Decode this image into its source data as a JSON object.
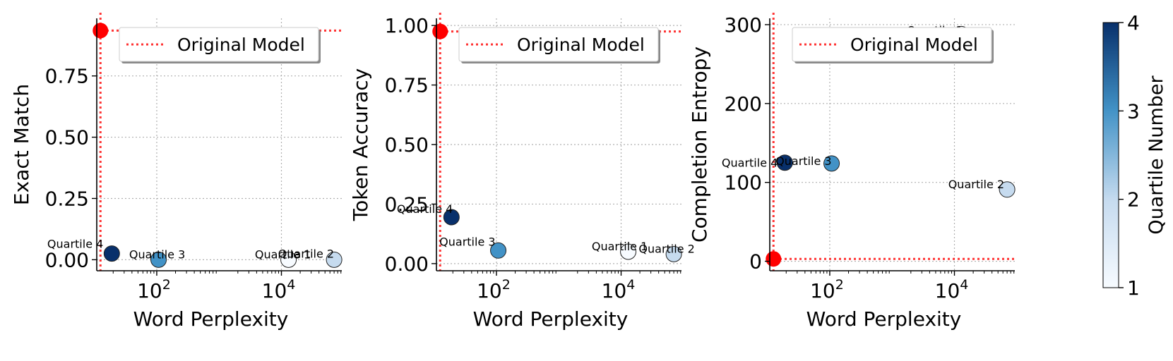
{
  "figure": {
    "colorbar": {
      "label": "Quartile Number",
      "min": 1,
      "max": 4,
      "ticks": [
        "1",
        "2",
        "3",
        "4"
      ],
      "colormap": "Blues",
      "colors": [
        "#f7fbff",
        "#c6dbef",
        "#4292c6",
        "#08306b"
      ]
    },
    "reference_color": "#ff0000"
  },
  "chart_data": [
    {
      "type": "scatter",
      "xlabel": "Word Perplexity",
      "ylabel": "Exact Match",
      "xscale": "log",
      "xlim": [
        10.9,
        93000
      ],
      "ylim": [
        -0.045,
        0.985
      ],
      "xticks": [
        {
          "value": 100,
          "label": "10",
          "exp": "2"
        },
        {
          "value": 10000,
          "label": "10",
          "exp": "4"
        }
      ],
      "yticks": [
        {
          "value": 0.0,
          "label": "0.00"
        },
        {
          "value": 0.25,
          "label": "0.25"
        },
        {
          "value": 0.5,
          "label": "0.50"
        },
        {
          "value": 0.75,
          "label": "0.75"
        }
      ],
      "grid": true,
      "legend": {
        "label": "Original Model",
        "placement": "upper right"
      },
      "reference": {
        "x": 12.5,
        "y": 0.935
      },
      "points": [
        {
          "label": "Quartile 4",
          "x": 19,
          "y": 0.025,
          "quartile": 4
        },
        {
          "label": "Quartile 3",
          "x": 107,
          "y": 0.0,
          "quartile": 3
        },
        {
          "label": "Quartile 1",
          "x": 13000,
          "y": 0.0,
          "quartile": 1
        },
        {
          "label": "Quartile 2",
          "x": 70000,
          "y": 0.0,
          "quartile": 2
        }
      ]
    },
    {
      "type": "scatter",
      "xlabel": "Word Perplexity",
      "ylabel": "Token Accuracy",
      "xscale": "log",
      "xlim": [
        10.9,
        93000
      ],
      "ylim": [
        -0.03,
        1.03
      ],
      "xticks": [
        {
          "value": 100,
          "label": "10",
          "exp": "2"
        },
        {
          "value": 10000,
          "label": "10",
          "exp": "4"
        }
      ],
      "yticks": [
        {
          "value": 0.0,
          "label": "0.00"
        },
        {
          "value": 0.25,
          "label": "0.25"
        },
        {
          "value": 0.5,
          "label": "0.50"
        },
        {
          "value": 0.75,
          "label": "0.75"
        },
        {
          "value": 1.0,
          "label": "1.00"
        }
      ],
      "grid": true,
      "legend": {
        "label": "Original Model",
        "placement": "upper right"
      },
      "reference": {
        "x": 12.5,
        "y": 0.975
      },
      "points": [
        {
          "label": "Quartile 4",
          "x": 19,
          "y": 0.195,
          "quartile": 4
        },
        {
          "label": "Quartile 3",
          "x": 107,
          "y": 0.055,
          "quartile": 3
        },
        {
          "label": "Quartile 1",
          "x": 13000,
          "y": 0.05,
          "quartile": 1
        },
        {
          "label": "Quartile 2",
          "x": 70000,
          "y": 0.04,
          "quartile": 2
        }
      ]
    },
    {
      "type": "scatter",
      "xlabel": "Word Perplexity",
      "ylabel": "Completion Entropy",
      "xscale": "log",
      "xlim": [
        10.9,
        93000
      ],
      "ylim": [
        -12,
        308
      ],
      "xticks": [
        {
          "value": 100,
          "label": "10",
          "exp": "2"
        },
        {
          "value": 10000,
          "label": "10",
          "exp": "4"
        }
      ],
      "yticks": [
        {
          "value": 0,
          "label": "0"
        },
        {
          "value": 100,
          "label": "100"
        },
        {
          "value": 200,
          "label": "200"
        },
        {
          "value": 300,
          "label": "300"
        }
      ],
      "grid": true,
      "legend": {
        "label": "Original Model",
        "placement": "upper right"
      },
      "reference": {
        "x": 12.5,
        "y": 3
      },
      "points": [
        {
          "label": "Quartile 1",
          "x": 13000,
          "y": 288,
          "quartile": 1
        },
        {
          "label": "Quartile 4",
          "x": 19,
          "y": 125,
          "quartile": 4
        },
        {
          "label": "Quartile 3",
          "x": 107,
          "y": 124,
          "quartile": 3
        },
        {
          "label": "Quartile 2",
          "x": 70000,
          "y": 91,
          "quartile": 2
        }
      ]
    }
  ]
}
